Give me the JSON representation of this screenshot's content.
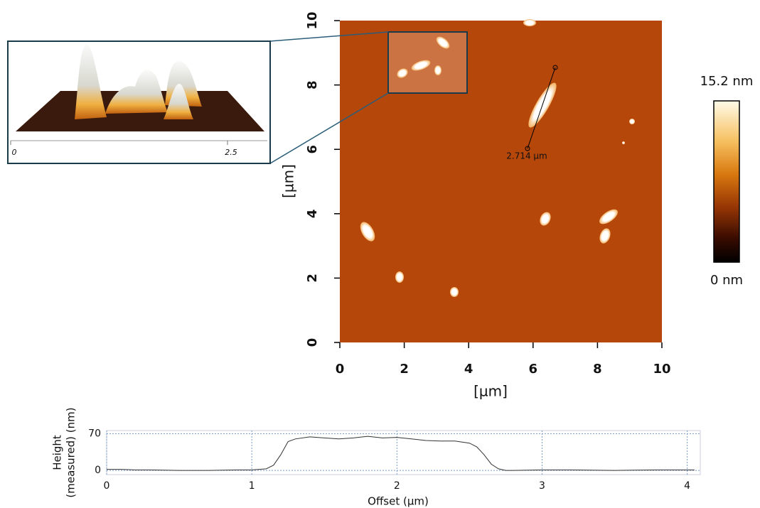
{
  "chart_data": [
    {
      "type": "image",
      "xlabel": "[µm]",
      "ylabel": "[µm]",
      "xlim": [
        0,
        10
      ],
      "ylim": [
        0,
        10
      ],
      "xticks": [
        0,
        2,
        4,
        6,
        8,
        10
      ],
      "yticks": [
        0,
        2,
        4,
        6,
        8,
        10
      ],
      "annotation": "2.714 µm",
      "colorbar": {
        "clim": [
          0,
          15.2
        ],
        "ticks": [
          {
            "value": 15.2,
            "label": "15.2 nm"
          },
          {
            "value": 0,
            "label": "0 nm"
          }
        ]
      },
      "inset": {
        "xticks": [
          0,
          2.5
        ]
      }
    },
    {
      "type": "line",
      "xlabel": "Offset (µm)",
      "ylabel": [
        "Height",
        "(measured) (nm)"
      ],
      "xlim": [
        0,
        4.09
      ],
      "ylim": [
        -8,
        76
      ],
      "xticks": [
        0,
        1,
        2,
        3,
        4
      ],
      "yticks": [
        0,
        70
      ],
      "grid": true,
      "x": [
        0,
        0.1,
        0.2,
        0.3,
        0.5,
        0.7,
        0.9,
        1.0,
        1.1,
        1.15,
        1.2,
        1.25,
        1.3,
        1.4,
        1.5,
        1.6,
        1.7,
        1.8,
        1.9,
        2.0,
        2.1,
        2.2,
        2.3,
        2.4,
        2.5,
        2.55,
        2.6,
        2.65,
        2.7,
        2.75,
        2.8,
        3.0,
        3.2,
        3.5,
        3.8,
        4.05
      ],
      "series": [
        {
          "color": "#333333",
          "values": [
            2,
            2,
            1,
            1,
            0,
            0,
            1,
            1,
            3,
            10,
            30,
            55,
            60,
            64,
            62,
            60,
            62,
            65,
            62,
            63,
            60,
            57,
            56,
            56,
            52,
            45,
            30,
            12,
            3,
            0,
            0,
            1,
            1,
            0,
            1,
            1
          ]
        }
      ]
    }
  ]
}
